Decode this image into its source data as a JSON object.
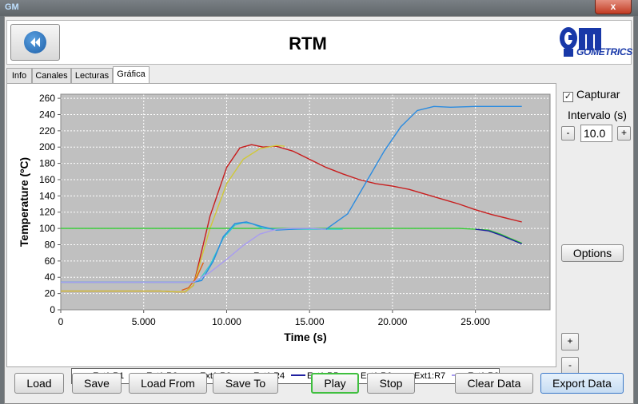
{
  "window": {
    "title": "",
    "close_label": "x",
    "icon_label": "GM"
  },
  "header": {
    "title": "RTM",
    "logo_text": "GOMETRICS"
  },
  "tabs": [
    {
      "label": "Info"
    },
    {
      "label": "Canales"
    },
    {
      "label": "Lecturas"
    },
    {
      "label": "Gráfica"
    }
  ],
  "sidebar": {
    "capture_label": "Capturar",
    "capture_checked": true,
    "interval_label": "Intervalo (s)",
    "interval_value": "10.0",
    "minus_label": "-",
    "plus_label": "+",
    "options_label": "Options",
    "zoom_in_label": "+",
    "zoom_out_label": "-"
  },
  "buttons": {
    "load": "Load",
    "save": "Save",
    "load_from": "Load From",
    "save_to": "Save To",
    "play": "Play",
    "stop": "Stop",
    "clear": "Clear Data",
    "export": "Export Data"
  },
  "colors": {
    "plot_bg": "#c0c0c0",
    "grid": "#ffffff"
  },
  "chart_data": {
    "type": "line",
    "xlabel": "Time (s)",
    "ylabel": "Temperature (ºC)",
    "xlim": [
      0,
      29500
    ],
    "ylim": [
      0,
      265
    ],
    "xticks": [
      0,
      5000,
      10000,
      15000,
      20000,
      25000
    ],
    "xtick_labels": [
      "0",
      "5.000",
      "10.000",
      "15.000",
      "20.000",
      "25.000"
    ],
    "yticks": [
      0,
      20,
      40,
      60,
      80,
      100,
      120,
      140,
      160,
      180,
      200,
      220,
      240,
      260
    ],
    "grid": true,
    "legend_position": "bottom",
    "series": [
      {
        "name": "Ext1:R1",
        "color": "#c81e1e",
        "points": [
          [
            0,
            23
          ],
          [
            6000,
            23
          ],
          [
            7000,
            22
          ],
          [
            7500,
            22
          ],
          [
            8000,
            30
          ],
          [
            9000,
            115
          ],
          [
            10000,
            175
          ],
          [
            10800,
            199
          ],
          [
            11500,
            203
          ],
          [
            12200,
            200
          ],
          [
            13000,
            201
          ],
          [
            14000,
            195
          ],
          [
            15000,
            185
          ],
          [
            16000,
            175
          ],
          [
            17000,
            167
          ],
          [
            18000,
            160
          ],
          [
            19000,
            155
          ],
          [
            20000,
            152
          ],
          [
            21000,
            148
          ],
          [
            22000,
            142
          ],
          [
            23000,
            136
          ],
          [
            24000,
            130
          ],
          [
            25000,
            123
          ],
          [
            26000,
            117
          ],
          [
            27000,
            112
          ],
          [
            27800,
            108
          ]
        ]
      },
      {
        "name": "Ext1:R2",
        "color": "#d0c838",
        "points": [
          [
            0,
            23
          ],
          [
            6000,
            23
          ],
          [
            7000,
            22
          ],
          [
            7500,
            22
          ],
          [
            8000,
            30
          ],
          [
            9000,
            100
          ],
          [
            10000,
            155
          ],
          [
            11000,
            185
          ],
          [
            12000,
            198
          ],
          [
            13000,
            202
          ],
          [
            13500,
            201
          ]
        ]
      },
      {
        "name": "Ext1:R3",
        "color": "#33cc33",
        "points": [
          [
            0,
            100
          ],
          [
            10000,
            100
          ],
          [
            15000,
            100
          ],
          [
            20000,
            100
          ],
          [
            24000,
            100
          ],
          [
            25000,
            99
          ],
          [
            25800,
            98
          ],
          [
            26500,
            93
          ],
          [
            27200,
            87
          ],
          [
            27800,
            82
          ]
        ]
      },
      {
        "name": "Ext1:R4",
        "color": "#33cccc",
        "points": [
          [
            0,
            34
          ],
          [
            7800,
            34
          ],
          [
            8300,
            35
          ],
          [
            9000,
            55
          ],
          [
            9800,
            88
          ],
          [
            10500,
            104
          ],
          [
            11000,
            107
          ],
          [
            11500,
            106
          ],
          [
            12200,
            100
          ],
          [
            13000,
            99
          ],
          [
            14000,
            99
          ],
          [
            15000,
            99
          ],
          [
            16000,
            99
          ],
          [
            17000,
            99
          ]
        ]
      },
      {
        "name": "Ext1:R5",
        "color": "#2020a0",
        "points": [
          [
            25000,
            99
          ],
          [
            25800,
            97
          ],
          [
            26500,
            92
          ],
          [
            27200,
            86
          ],
          [
            27800,
            81
          ]
        ]
      },
      {
        "name": "Ext1:R6",
        "color": "#e06010",
        "points": [
          [
            7300,
            24
          ],
          [
            7700,
            27
          ],
          [
            8200,
            40
          ],
          [
            8600,
            58
          ]
        ]
      },
      {
        "name": "Ext1:R7",
        "color": "#2a8be0",
        "points": [
          [
            0,
            34
          ],
          [
            8000,
            34
          ],
          [
            8500,
            36
          ],
          [
            9200,
            60
          ],
          [
            9800,
            90
          ],
          [
            10500,
            106
          ],
          [
            11200,
            108
          ],
          [
            12000,
            103
          ],
          [
            13000,
            98
          ],
          [
            14000,
            99
          ],
          [
            15000,
            100
          ],
          [
            16000,
            99
          ],
          [
            17300,
            118
          ],
          [
            18500,
            160
          ],
          [
            19500,
            195
          ],
          [
            20500,
            225
          ],
          [
            21500,
            245
          ],
          [
            22500,
            250
          ],
          [
            23500,
            249
          ],
          [
            25000,
            250
          ],
          [
            26500,
            250
          ],
          [
            27800,
            250
          ]
        ]
      },
      {
        "name": "Ext1:R8",
        "color": "#a89cf0",
        "points": [
          [
            0,
            34
          ],
          [
            8000,
            34
          ],
          [
            9000,
            46
          ],
          [
            10000,
            62
          ],
          [
            11000,
            79
          ],
          [
            12000,
            93
          ],
          [
            13000,
            99
          ],
          [
            14000,
            100
          ],
          [
            15000,
            100
          ],
          [
            16000,
            99
          ]
        ]
      }
    ]
  }
}
